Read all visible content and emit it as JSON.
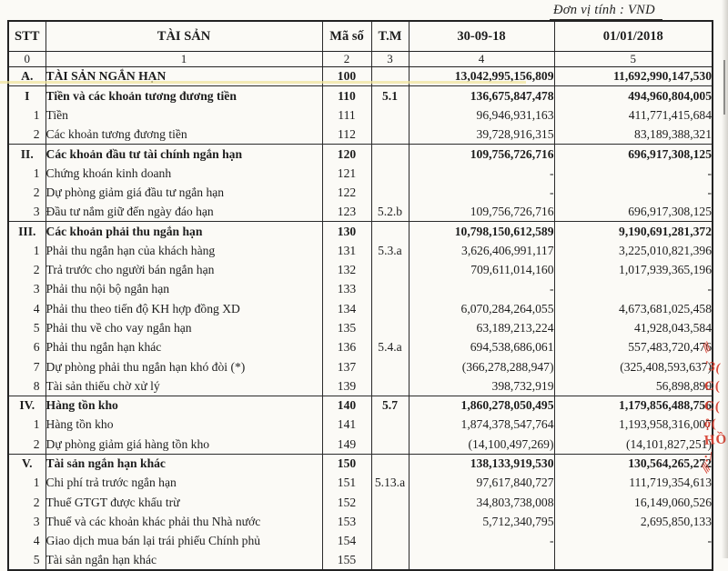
{
  "meta": {
    "unit_label": "Đơn vị tính : VND"
  },
  "colors": {
    "ink": "#1d1d1d",
    "stamp_red": "#d63a2c",
    "highlight_yellow": "#efe39a",
    "paper": "#fbfaf6"
  },
  "table": {
    "headers": {
      "stt": "STT",
      "asset": "TÀI SẢN",
      "code": "Mã số",
      "note": "T.M",
      "col_current": "30-09-18",
      "col_begin": "01/01/2018"
    },
    "index_row": [
      "0",
      "1",
      "2",
      "3",
      "4",
      "5"
    ],
    "rows": [
      {
        "stt": "A.",
        "label": "TÀI SẢN NGẮN HẠN",
        "code": "100",
        "note": "",
        "v1": "13,042,995,156,809",
        "v2": "11,692,990,147,530",
        "style": "section",
        "sep": true
      },
      {
        "stt": "I",
        "label": "Tiền và các khoản tương đương tiền",
        "code": "110",
        "note": "5.1",
        "v1": "136,675,847,478",
        "v2": "494,960,804,005",
        "style": "section",
        "sep": true
      },
      {
        "stt": "1",
        "label": "Tiền",
        "code": "111",
        "note": "",
        "v1": "96,946,931,163",
        "v2": "411,771,415,684",
        "style": "sub",
        "sep": false
      },
      {
        "stt": "2",
        "label": "Các khoản tương đương tiền",
        "code": "112",
        "note": "",
        "v1": "39,728,916,315",
        "v2": "83,189,388,321",
        "style": "sub",
        "sep": false
      },
      {
        "stt": "II.",
        "label": "Các khoản đầu tư tài chính ngắn hạn",
        "code": "120",
        "note": "",
        "v1": "109,756,726,716",
        "v2": "696,917,308,125",
        "style": "section",
        "sep": true
      },
      {
        "stt": "1",
        "label": "Chứng khoán kinh doanh",
        "code": "121",
        "note": "",
        "v1": "-",
        "v2": "-",
        "style": "sub",
        "sep": false
      },
      {
        "stt": "2",
        "label": "Dự phòng giảm giá đầu tư ngắn hạn",
        "code": "122",
        "note": "",
        "v1": "-",
        "v2": "-",
        "style": "sub",
        "sep": false
      },
      {
        "stt": "3",
        "label": "Đầu tư nắm giữ đến ngày đáo hạn",
        "code": "123",
        "note": "5.2.b",
        "v1": "109,756,726,716",
        "v2": "696,917,308,125",
        "style": "sub",
        "sep": false
      },
      {
        "stt": "III.",
        "label": "Các khoản phải thu ngắn hạn",
        "code": "130",
        "note": "",
        "v1": "10,798,150,612,589",
        "v2": "9,190,691,281,372",
        "style": "section",
        "sep": true
      },
      {
        "stt": "1",
        "label": "Phải thu ngắn hạn của khách hàng",
        "code": "131",
        "note": "5.3.a",
        "v1": "3,626,406,991,117",
        "v2": "3,225,010,821,396",
        "style": "sub",
        "sep": false
      },
      {
        "stt": "2",
        "label": "Trả trước cho người bán ngắn hạn",
        "code": "132",
        "note": "",
        "v1": "709,611,014,160",
        "v2": "1,017,939,365,196",
        "style": "sub",
        "sep": false
      },
      {
        "stt": "3",
        "label": "Phải thu nội bộ ngắn hạn",
        "code": "133",
        "note": "",
        "v1": "-",
        "v2": "-",
        "style": "sub",
        "sep": false
      },
      {
        "stt": "4",
        "label": "Phải thu theo tiến độ KH hợp đồng XD",
        "code": "134",
        "note": "",
        "v1": "6,070,284,264,055",
        "v2": "4,673,681,025,458",
        "style": "sub",
        "sep": false
      },
      {
        "stt": "5",
        "label": "Phải thu về cho vay ngắn hạn",
        "code": "135",
        "note": "",
        "v1": "63,189,213,224",
        "v2": "41,928,043,584",
        "style": "sub",
        "sep": false
      },
      {
        "stt": "6",
        "label": "Phải thu ngắn hạn khác",
        "code": "136",
        "note": "5.4.a",
        "v1": "694,538,686,061",
        "v2": "557,483,720,476",
        "style": "sub",
        "sep": false
      },
      {
        "stt": "7",
        "label": "Dự phòng phải thu ngắn hạn khó đòi (*)",
        "code": "137",
        "note": "",
        "v1": "(366,278,288,947)",
        "v2": "(325,408,593,637)",
        "style": "sub",
        "sep": false
      },
      {
        "stt": "8",
        "label": "Tài sản thiếu chờ xử lý",
        "code": "139",
        "note": "",
        "v1": "398,732,919",
        "v2": "56,898,899",
        "style": "sub",
        "sep": false
      },
      {
        "stt": "IV.",
        "label": "Hàng tồn kho",
        "code": "140",
        "note": "5.7",
        "v1": "1,860,278,050,495",
        "v2": "1,179,856,488,756",
        "style": "section",
        "sep": true
      },
      {
        "stt": "1",
        "label": "Hàng tồn kho",
        "code": "141",
        "note": "",
        "v1": "1,874,378,547,764",
        "v2": "1,193,958,316,007",
        "style": "sub",
        "sep": false
      },
      {
        "stt": "2",
        "label": "Dự phòng giảm giá hàng tồn kho",
        "code": "149",
        "note": "",
        "v1": "(14,100,497,269)",
        "v2": "(14,101,827,251)",
        "style": "sub",
        "sep": false
      },
      {
        "stt": "V.",
        "label": "Tài sản ngắn hạn khác",
        "code": "150",
        "note": "",
        "v1": "138,133,919,530",
        "v2": "130,564,265,272",
        "style": "section",
        "sep": true
      },
      {
        "stt": "1",
        "label": "Chi phí trả trước ngắn hạn",
        "code": "151",
        "note": "5.13.a",
        "v1": "97,617,840,727",
        "v2": "111,719,354,613",
        "style": "sub",
        "sep": false
      },
      {
        "stt": "2",
        "label": "Thuế GTGT được khấu trừ",
        "code": "152",
        "note": "",
        "v1": "34,803,738,008",
        "v2": "16,149,060,526",
        "style": "sub",
        "sep": false
      },
      {
        "stt": "3",
        "label": "Thuế và các khoản khác phải thu Nhà nước",
        "code": "153",
        "note": "",
        "v1": "5,712,340,795",
        "v2": "2,695,850,133",
        "style": "sub",
        "sep": false
      },
      {
        "stt": "4",
        "label": "Giao dịch mua bán lại trái phiếu Chính phủ",
        "code": "154",
        "note": "",
        "v1": "-",
        "v2": "-",
        "style": "sub",
        "sep": false
      },
      {
        "stt": "5",
        "label": "Tài sản ngắn hạn khác",
        "code": "155",
        "note": "",
        "v1": "",
        "v2": "",
        "style": "sub",
        "sep": false
      }
    ]
  },
  "stamp": {
    "fragments": [
      "///",
      "'3(",
      "C(",
      "C(",
      "ộ(",
      "HỒ",
      ":/",
      "///"
    ]
  }
}
